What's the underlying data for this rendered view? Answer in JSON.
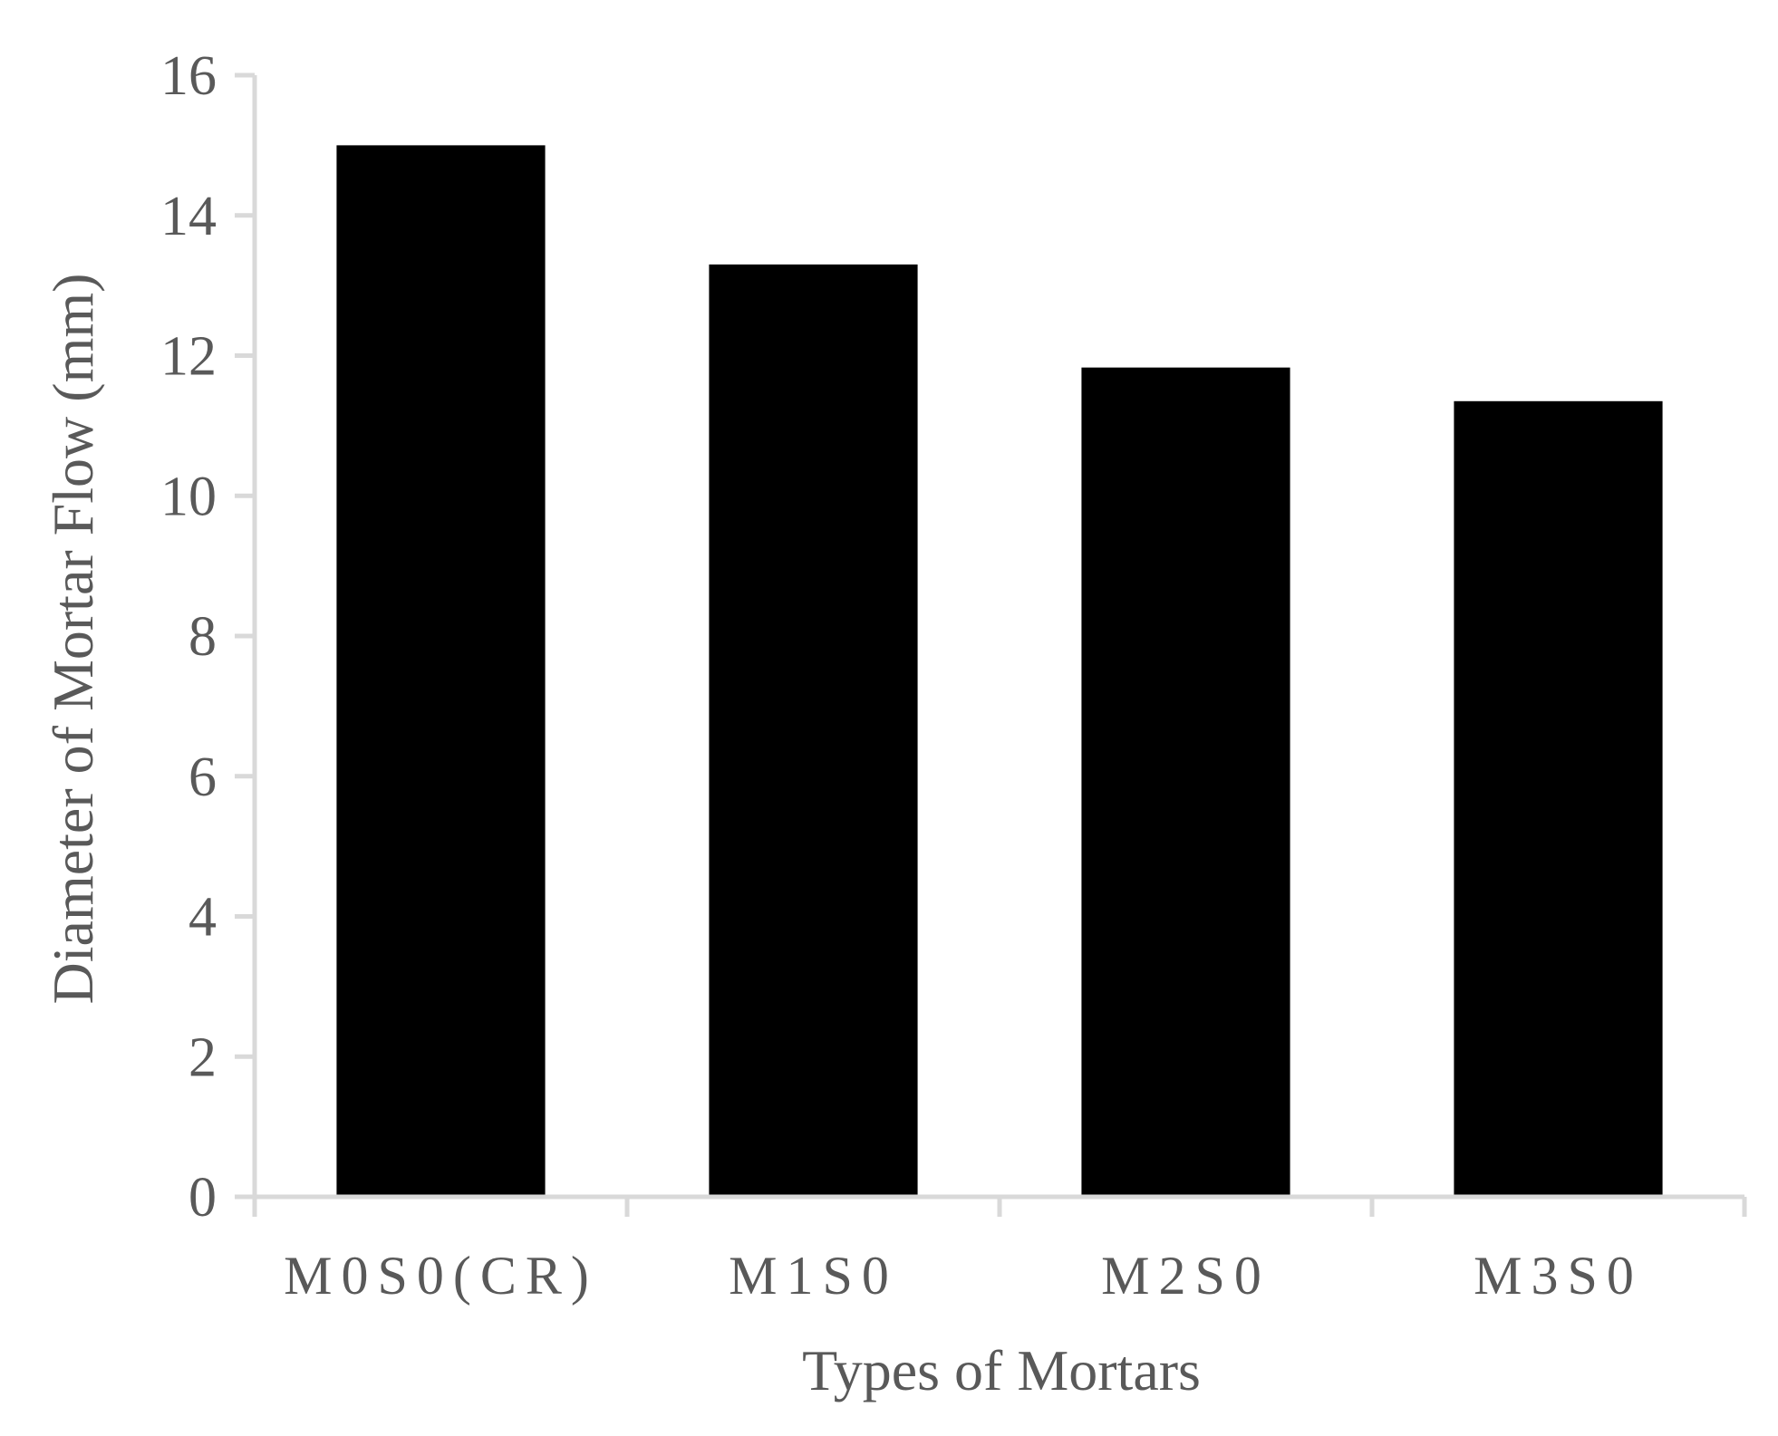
{
  "chart_data": {
    "type": "bar",
    "categories": [
      "M0S0(CR)",
      "M1S0",
      "M2S0",
      "M3S0"
    ],
    "values": [
      15.0,
      13.3,
      11.83,
      11.35
    ],
    "title": "",
    "xlabel": "Types of Mortars",
    "ylabel": "Diameter of Mortar Flow (mm)",
    "ylim": [
      0,
      16
    ],
    "yticks": [
      "0",
      "2",
      "4",
      "6",
      "8",
      "10",
      "12",
      "14",
      "16"
    ],
    "grid": false,
    "legend": "none",
    "colors": {
      "bar": "#000000",
      "axis": "#d9d9d9",
      "text": "#595959"
    }
  }
}
